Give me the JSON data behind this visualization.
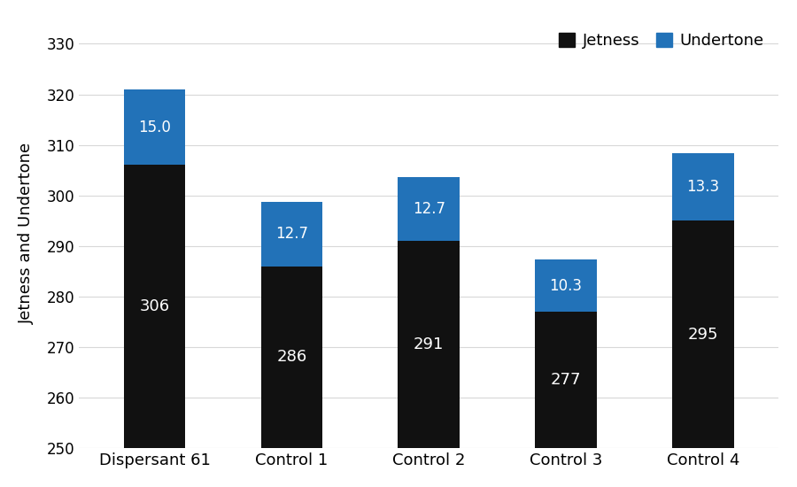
{
  "categories": [
    "Dispersant 61",
    "Control 1",
    "Control 2",
    "Control 3",
    "Control 4"
  ],
  "jetness_values": [
    306,
    286,
    291,
    277,
    295
  ],
  "undertone_values": [
    15.0,
    12.7,
    12.7,
    10.3,
    13.3
  ],
  "jetness_color": "#111111",
  "undertone_color": "#2272b8",
  "ylabel": "Jetness and Undertone",
  "ylim": [
    250,
    335
  ],
  "yticks": [
    250,
    260,
    270,
    280,
    290,
    300,
    310,
    320,
    330
  ],
  "legend_labels": [
    "Jetness",
    "Undertone"
  ],
  "background_color": "#ffffff",
  "bar_width": 0.45,
  "jetness_label_fontsize": 13,
  "undertone_label_fontsize": 12
}
